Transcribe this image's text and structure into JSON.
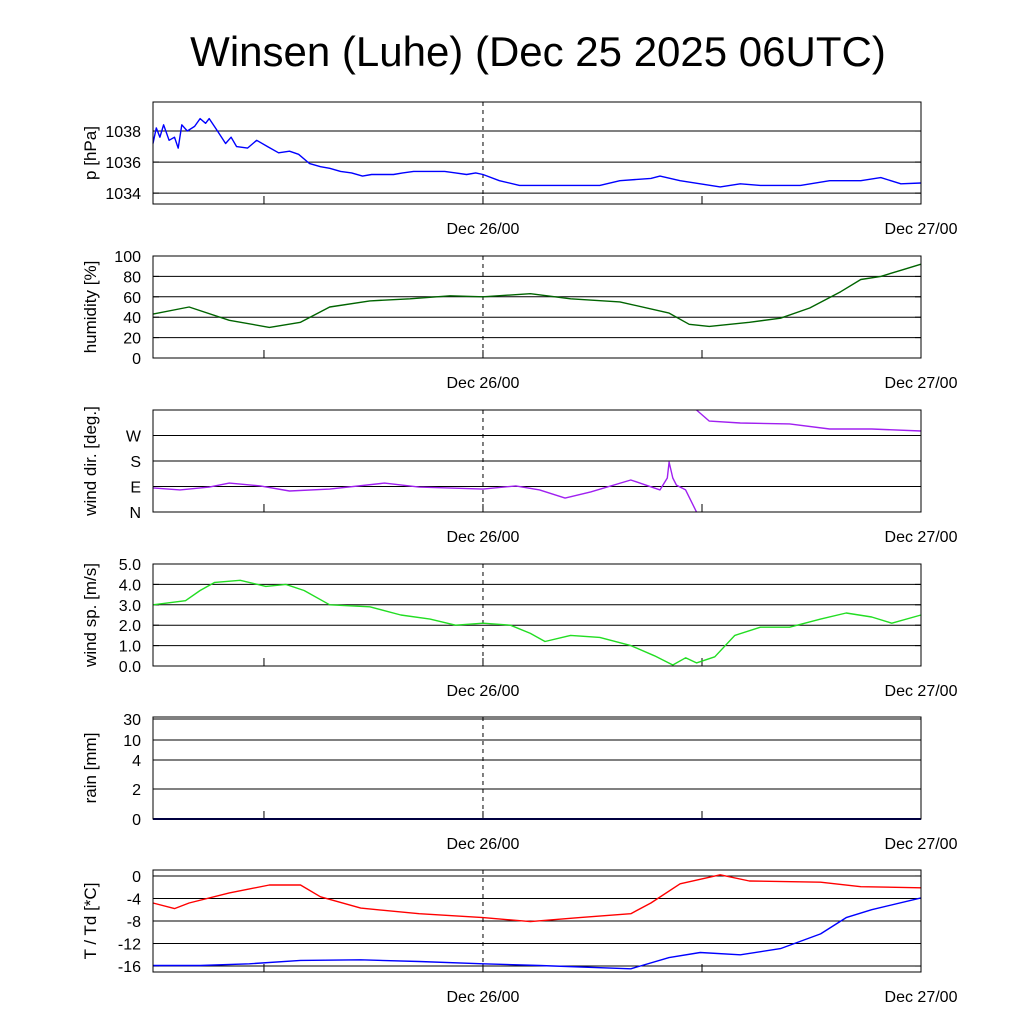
{
  "chart_data": {
    "type": "line",
    "title": "Winsen (Luhe) (Dec 25 2025 06UTC)",
    "x_units": "hours relative to Dec 26/00 UTC",
    "xlim": [
      -18.08,
      24
    ],
    "x_tick_labels": [
      {
        "x": 0,
        "label": "Dec 26/00"
      },
      {
        "x": 24,
        "label": "Dec 27/00"
      }
    ],
    "x_minor_ticks": [
      -12,
      0,
      12
    ],
    "marker_line_x": 0,
    "panels": [
      {
        "id": "pressure",
        "ylabel": "p [hPa]",
        "ylim": [
          1033.3,
          1039.87
        ],
        "yticks": [
          {
            "v": 1034,
            "label": "1034"
          },
          {
            "v": 1036,
            "label": "1036"
          },
          {
            "v": 1038,
            "label": "1038"
          }
        ],
        "series": [
          {
            "name": "pressure",
            "color": "#0000ff",
            "points": [
              [
                -18.08,
                1037.2
              ],
              [
                -17.9,
                1038.2
              ],
              [
                -17.7,
                1037.6
              ],
              [
                -17.5,
                1038.4
              ],
              [
                -17.2,
                1037.4
              ],
              [
                -16.9,
                1037.6
              ],
              [
                -16.7,
                1036.9
              ],
              [
                -16.5,
                1038.4
              ],
              [
                -16.2,
                1038.0
              ],
              [
                -15.8,
                1038.3
              ],
              [
                -15.5,
                1038.8
              ],
              [
                -15.2,
                1038.5
              ],
              [
                -15.0,
                1038.8
              ],
              [
                -14.6,
                1038.1
              ],
              [
                -14.1,
                1037.2
              ],
              [
                -13.8,
                1037.6
              ],
              [
                -13.5,
                1037.0
              ],
              [
                -12.9,
                1036.9
              ],
              [
                -12.4,
                1037.4
              ],
              [
                -11.8,
                1037.0
              ],
              [
                -11.2,
                1036.6
              ],
              [
                -10.6,
                1036.7
              ],
              [
                -10.1,
                1036.5
              ],
              [
                -9.5,
                1035.9
              ],
              [
                -8.9,
                1035.7
              ],
              [
                -8.4,
                1035.6
              ],
              [
                -7.8,
                1035.4
              ],
              [
                -7.2,
                1035.3
              ],
              [
                -6.6,
                1035.1
              ],
              [
                -6.1,
                1035.2
              ],
              [
                -5.5,
                1035.2
              ],
              [
                -4.9,
                1035.2
              ],
              [
                -4.4,
                1035.3
              ],
              [
                -3.8,
                1035.4
              ],
              [
                -3.2,
                1035.4
              ],
              [
                -2.6,
                1035.4
              ],
              [
                -2.1,
                1035.4
              ],
              [
                -1.5,
                1035.3
              ],
              [
                -0.9,
                1035.2
              ],
              [
                -0.4,
                1035.3
              ],
              [
                0,
                1035.2
              ],
              [
                0.9,
                1034.8
              ],
              [
                2.0,
                1034.5
              ],
              [
                4.2,
                1034.5
              ],
              [
                6.4,
                1034.5
              ],
              [
                7.5,
                1034.8
              ],
              [
                9.2,
                1034.95
              ],
              [
                9.7,
                1035.1
              ],
              [
                10.8,
                1034.8
              ],
              [
                11.9,
                1034.6
              ],
              [
                13.0,
                1034.4
              ],
              [
                14.1,
                1034.6
              ],
              [
                15.2,
                1034.5
              ],
              [
                17.4,
                1034.5
              ],
              [
                19.0,
                1034.8
              ],
              [
                20.7,
                1034.8
              ],
              [
                21.8,
                1035.0
              ],
              [
                22.9,
                1034.6
              ],
              [
                24,
                1034.65
              ]
            ]
          }
        ]
      },
      {
        "id": "humidity",
        "ylabel": "humidity [%]",
        "ylim": [
          0,
          100
        ],
        "yticks": [
          {
            "v": 0,
            "label": "0"
          },
          {
            "v": 20,
            "label": "20"
          },
          {
            "v": 40,
            "label": "40"
          },
          {
            "v": 60,
            "label": "60"
          },
          {
            "v": 80,
            "label": "80"
          },
          {
            "v": 100,
            "label": "100"
          }
        ],
        "series": [
          {
            "name": "humidity",
            "color": "#006400",
            "points": [
              [
                -18.08,
                43
              ],
              [
                -16.1,
                50
              ],
              [
                -13.9,
                37
              ],
              [
                -11.7,
                30
              ],
              [
                -10.0,
                35
              ],
              [
                -8.4,
                50
              ],
              [
                -6.2,
                56
              ],
              [
                -4.0,
                58
              ],
              [
                -1.8,
                61
              ],
              [
                0,
                60
              ],
              [
                2.6,
                63
              ],
              [
                4.8,
                58
              ],
              [
                7.5,
                55
              ],
              [
                10.2,
                44
              ],
              [
                11.3,
                33
              ],
              [
                12.4,
                31
              ],
              [
                14.6,
                35
              ],
              [
                16.3,
                39
              ],
              [
                17.9,
                49
              ],
              [
                19.6,
                65
              ],
              [
                20.7,
                77
              ],
              [
                21.8,
                80
              ],
              [
                22.9,
                86
              ],
              [
                24,
                92
              ]
            ]
          }
        ]
      },
      {
        "id": "wind_direction",
        "ylabel": "wind dir. [deg.]",
        "ylim": [
          0,
          360
        ],
        "yticks": [
          {
            "v": 0,
            "label": "N"
          },
          {
            "v": 90,
            "label": "E"
          },
          {
            "v": 180,
            "label": "S"
          },
          {
            "v": 270,
            "label": "W"
          }
        ],
        "series": [
          {
            "name": "wind direction",
            "color": "#a020f0",
            "points": [
              [
                -18.08,
                85
              ],
              [
                -16.6,
                78
              ],
              [
                -15.0,
                88
              ],
              [
                -13.9,
                102
              ],
              [
                -12.2,
                92
              ],
              [
                -10.6,
                74
              ],
              [
                -8.4,
                81
              ],
              [
                -5.4,
                102
              ],
              [
                -3.5,
                88
              ],
              [
                0,
                81
              ],
              [
                1.8,
                92
              ],
              [
                3.1,
                78
              ],
              [
                4.5,
                49
              ],
              [
                5.9,
                71
              ],
              [
                8.1,
                113
              ],
              [
                9.7,
                78
              ],
              [
                10.1,
                120
              ],
              [
                10.2,
                176
              ],
              [
                10.4,
                120
              ],
              [
                10.6,
                95
              ],
              [
                11.1,
                78
              ],
              [
                11.7,
                0
              ],
              [
                11.7,
                360
              ],
              [
                12.4,
                321
              ],
              [
                14.1,
                314
              ],
              [
                16.8,
                311
              ],
              [
                19.0,
                293
              ],
              [
                21.3,
                293
              ],
              [
                24,
                286
              ]
            ]
          }
        ]
      },
      {
        "id": "wind_speed",
        "ylabel": "wind sp. [m/s]",
        "ylim": [
          0,
          5
        ],
        "yticks": [
          {
            "v": 0,
            "label": "0.0"
          },
          {
            "v": 1,
            "label": "1.0"
          },
          {
            "v": 2,
            "label": "2.0"
          },
          {
            "v": 3,
            "label": "3.0"
          },
          {
            "v": 4,
            "label": "4.0"
          },
          {
            "v": 5,
            "label": "5.0"
          }
        ],
        "series": [
          {
            "name": "wind speed",
            "color": "#22dd22",
            "points": [
              [
                -18.08,
                3.0
              ],
              [
                -16.3,
                3.2
              ],
              [
                -15.5,
                3.7
              ],
              [
                -14.7,
                4.1
              ],
              [
                -13.3,
                4.2
              ],
              [
                -11.9,
                3.9
              ],
              [
                -10.8,
                4.0
              ],
              [
                -9.8,
                3.7
              ],
              [
                -8.4,
                3.0
              ],
              [
                -6.2,
                2.9
              ],
              [
                -4.5,
                2.5
              ],
              [
                -2.9,
                2.3
              ],
              [
                -1.5,
                2.0
              ],
              [
                0,
                2.1
              ],
              [
                1.5,
                2.0
              ],
              [
                2.6,
                1.6
              ],
              [
                3.4,
                1.2
              ],
              [
                4.8,
                1.5
              ],
              [
                6.4,
                1.4
              ],
              [
                8.1,
                1.0
              ],
              [
                9.4,
                0.5
              ],
              [
                10.4,
                0.05
              ],
              [
                11.1,
                0.4
              ],
              [
                11.7,
                0.15
              ],
              [
                12.7,
                0.45
              ],
              [
                13.8,
                1.5
              ],
              [
                15.2,
                1.9
              ],
              [
                16.8,
                1.9
              ],
              [
                18.5,
                2.3
              ],
              [
                19.9,
                2.6
              ],
              [
                21.3,
                2.4
              ],
              [
                22.4,
                2.1
              ],
              [
                24,
                2.5
              ]
            ]
          }
        ]
      },
      {
        "id": "rain",
        "ylabel": "rain [mm]",
        "ylim": [
          0,
          30
        ],
        "yticks": [
          {
            "v": 0,
            "label": "0"
          },
          {
            "v": 2,
            "label": "2"
          },
          {
            "v": 4,
            "label": "4"
          },
          {
            "v": 10,
            "label": "10"
          },
          {
            "v": 30,
            "label": "30"
          }
        ],
        "series": [
          {
            "name": "rain",
            "color": "#000080",
            "points": [
              [
                -18.08,
                0
              ],
              [
                24,
                0
              ]
            ]
          }
        ]
      },
      {
        "id": "temperature",
        "ylabel": "T / Td [*C]",
        "ylim": [
          -17.06,
          1.06
        ],
        "yticks": [
          {
            "v": -16,
            "label": "-16"
          },
          {
            "v": -12,
            "label": "-12"
          },
          {
            "v": -8,
            "label": "-8"
          },
          {
            "v": -4,
            "label": "-4"
          },
          {
            "v": 0,
            "label": "0"
          }
        ],
        "series": [
          {
            "name": "T",
            "color": "#ff0000",
            "points": [
              [
                -18.08,
                -4.8
              ],
              [
                -16.9,
                -5.8
              ],
              [
                -16.1,
                -4.8
              ],
              [
                -13.9,
                -3.0
              ],
              [
                -11.7,
                -1.6
              ],
              [
                -10.0,
                -1.6
              ],
              [
                -8.9,
                -3.7
              ],
              [
                -6.7,
                -5.7
              ],
              [
                -3.5,
                -6.7
              ],
              [
                0,
                -7.4
              ],
              [
                2.6,
                -8.1
              ],
              [
                5.3,
                -7.4
              ],
              [
                8.1,
                -6.7
              ],
              [
                9.2,
                -4.8
              ],
              [
                10.8,
                -1.4
              ],
              [
                13.0,
                0.2
              ],
              [
                14.6,
                -0.9
              ],
              [
                18.5,
                -1.1
              ],
              [
                20.7,
                -1.9
              ],
              [
                24,
                -2.1
              ]
            ]
          },
          {
            "name": "Td",
            "color": "#0000ff",
            "points": [
              [
                -18.08,
                -15.9
              ],
              [
                -15.5,
                -15.9
              ],
              [
                -12.8,
                -15.6
              ],
              [
                -10.0,
                -15.0
              ],
              [
                -6.7,
                -14.9
              ],
              [
                -3.5,
                -15.2
              ],
              [
                0,
                -15.6
              ],
              [
                3.1,
                -15.9
              ],
              [
                8.1,
                -16.5
              ],
              [
                10.2,
                -14.5
              ],
              [
                11.9,
                -13.6
              ],
              [
                14.1,
                -14.0
              ],
              [
                16.3,
                -12.9
              ],
              [
                18.5,
                -10.3
              ],
              [
                19.9,
                -7.4
              ],
              [
                21.3,
                -6.0
              ],
              [
                24,
                -3.9
              ]
            ]
          }
        ]
      }
    ]
  }
}
